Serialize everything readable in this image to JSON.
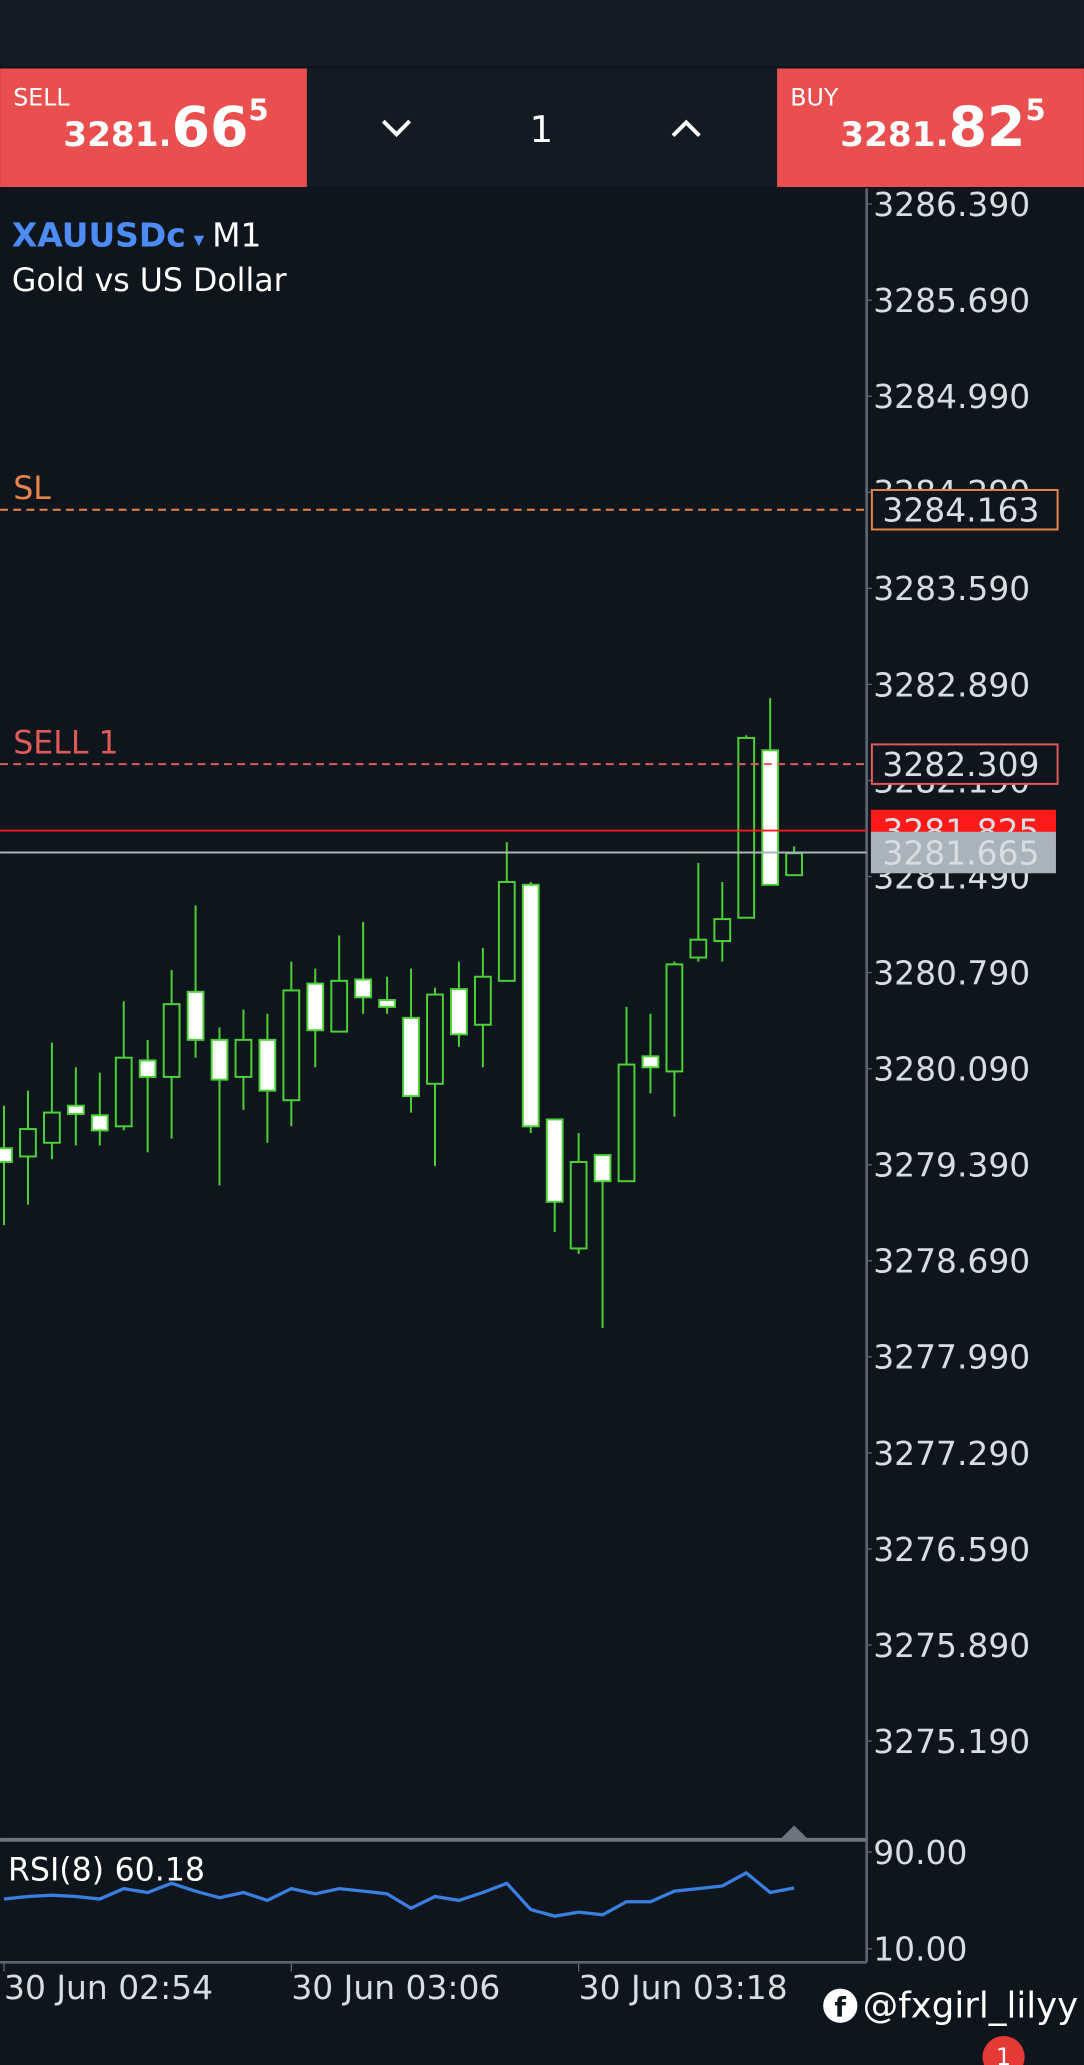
{
  "trade_panel": {
    "sell": {
      "label": "SELL",
      "price_main": "3281.",
      "price_big": "66",
      "price_sup": "5"
    },
    "buy": {
      "label": "BUY",
      "price_main": "3281.",
      "price_big": "82",
      "price_sup": "5"
    },
    "volume": "1"
  },
  "symbol": {
    "ticker": "XAUUSDc",
    "timeframe": "M1",
    "description": "Gold vs US Dollar"
  },
  "chart_data": {
    "type": "candlestick",
    "categories": [
      "30 Jun 02:54",
      null,
      null,
      null,
      null,
      null,
      null,
      null,
      null,
      null,
      null,
      null,
      "30 Jun 03:06",
      null,
      null,
      null,
      null,
      null,
      null,
      null,
      null,
      null,
      null,
      null,
      "30 Jun 03:18",
      null,
      null,
      null,
      null,
      null,
      null,
      null,
      null,
      null
    ],
    "open": [
      3279.51,
      3279.45,
      3279.55,
      3279.82,
      3279.75,
      3279.67,
      3280.15,
      3280.03,
      3280.65,
      3280.3,
      3280.03,
      3280.3,
      3279.86,
      3280.71,
      3280.36,
      3280.74,
      3280.59,
      3280.46,
      3279.98,
      3280.67,
      3280.41,
      3280.73,
      3281.43,
      3279.72,
      3278.78,
      3279.46,
      3279.27,
      3280.18,
      3280.07,
      3280.9,
      3281.02,
      3281.19,
      3282.41,
      3281.5
    ],
    "high": [
      3279.82,
      3279.93,
      3280.28,
      3280.1,
      3280.06,
      3280.58,
      3280.3,
      3280.81,
      3281.28,
      3280.39,
      3280.52,
      3280.49,
      3280.87,
      3280.82,
      3281.06,
      3281.16,
      3280.76,
      3280.82,
      3280.68,
      3280.87,
      3280.97,
      3281.74,
      3281.45,
      3279.72,
      3279.62,
      3279.46,
      3280.54,
      3280.49,
      3280.87,
      3281.59,
      3281.45,
      3282.52,
      3282.79,
      3281.71
    ],
    "low": [
      3278.95,
      3279.1,
      3279.43,
      3279.53,
      3279.53,
      3279.64,
      3279.48,
      3279.58,
      3280.17,
      3279.24,
      3279.79,
      3279.55,
      3279.67,
      3280.1,
      3280.36,
      3280.49,
      3280.49,
      3279.77,
      3279.38,
      3280.25,
      3280.1,
      3280.73,
      3279.62,
      3278.9,
      3278.74,
      3278.2,
      3279.27,
      3279.91,
      3279.74,
      3280.87,
      3280.87,
      3281.19,
      3281.43,
      3281.5
    ],
    "close": [
      3279.41,
      3279.65,
      3279.77,
      3279.76,
      3279.64,
      3280.17,
      3280.03,
      3280.56,
      3280.3,
      3280.01,
      3280.3,
      3279.93,
      3280.66,
      3280.37,
      3280.73,
      3280.61,
      3280.54,
      3279.89,
      3280.63,
      3280.34,
      3280.76,
      3281.45,
      3279.67,
      3279.12,
      3279.41,
      3279.27,
      3280.12,
      3280.1,
      3280.85,
      3281.03,
      3281.18,
      3282.5,
      3281.43,
      3281.66
    ],
    "up_color": "#0e151d",
    "down_color": "#ffffff",
    "outline_color": "#4cd137",
    "ylim": [
      3274.49,
      3286.505
    ],
    "yticks": [
      {
        "value": 3286.39,
        "label": "3286.390"
      },
      {
        "value": 3285.69,
        "label": "3285.690"
      },
      {
        "value": 3284.99,
        "label": "3284.990"
      },
      {
        "value": 3284.29,
        "label": "3284.290"
      },
      {
        "value": 3283.59,
        "label": "3283.590"
      },
      {
        "value": 3282.89,
        "label": "3282.890"
      },
      {
        "value": 3282.19,
        "label": "3282.190"
      },
      {
        "value": 3281.49,
        "label": "3281.490"
      },
      {
        "value": 3280.79,
        "label": "3280.790"
      },
      {
        "value": 3280.09,
        "label": "3280.090"
      },
      {
        "value": 3279.39,
        "label": "3279.390"
      },
      {
        "value": 3278.69,
        "label": "3278.690"
      },
      {
        "value": 3277.99,
        "label": "3277.990"
      },
      {
        "value": 3277.29,
        "label": "3277.290"
      },
      {
        "value": 3276.59,
        "label": "3276.590"
      },
      {
        "value": 3275.89,
        "label": "3275.890"
      },
      {
        "value": 3275.19,
        "label": "3275.190"
      }
    ],
    "levels": [
      {
        "name": "SL",
        "value": 3284.163,
        "color": "#e8834a",
        "style": "dashed",
        "box": "outline"
      },
      {
        "name": "SELL 1",
        "value": 3282.309,
        "color": "#e05a5a",
        "style": "dashed",
        "box": "outline"
      },
      {
        "value": 3281.825,
        "color": "#ff1a1a",
        "style": "solid",
        "box": "filled"
      },
      {
        "value": 3281.665,
        "color": "#a9b3bc",
        "style": "solid",
        "box": "filled"
      }
    ]
  },
  "indicator": {
    "type": "line",
    "name": "RSI(8)",
    "color": "#3a7fe0",
    "values": [
      51.1,
      53.2,
      54.3,
      53.2,
      51.1,
      59.7,
      56.5,
      64.1,
      57.6,
      52.2,
      56.5,
      50.0,
      59.7,
      55.4,
      59.7,
      57.6,
      55.4,
      43.5,
      53.2,
      50.0,
      56.5,
      64.1,
      42.4,
      37.0,
      40.3,
      38.1,
      48.9,
      48.9,
      57.6,
      59.7,
      61.9,
      72.7,
      56.5,
      60.18
    ],
    "ylim": [
      0,
      100
    ],
    "yticks": [
      {
        "value": 90,
        "label": "90.00"
      },
      {
        "value": 10,
        "label": "10.00"
      }
    ]
  },
  "watermark": "@fxgirl_lilyy",
  "badge": "1"
}
